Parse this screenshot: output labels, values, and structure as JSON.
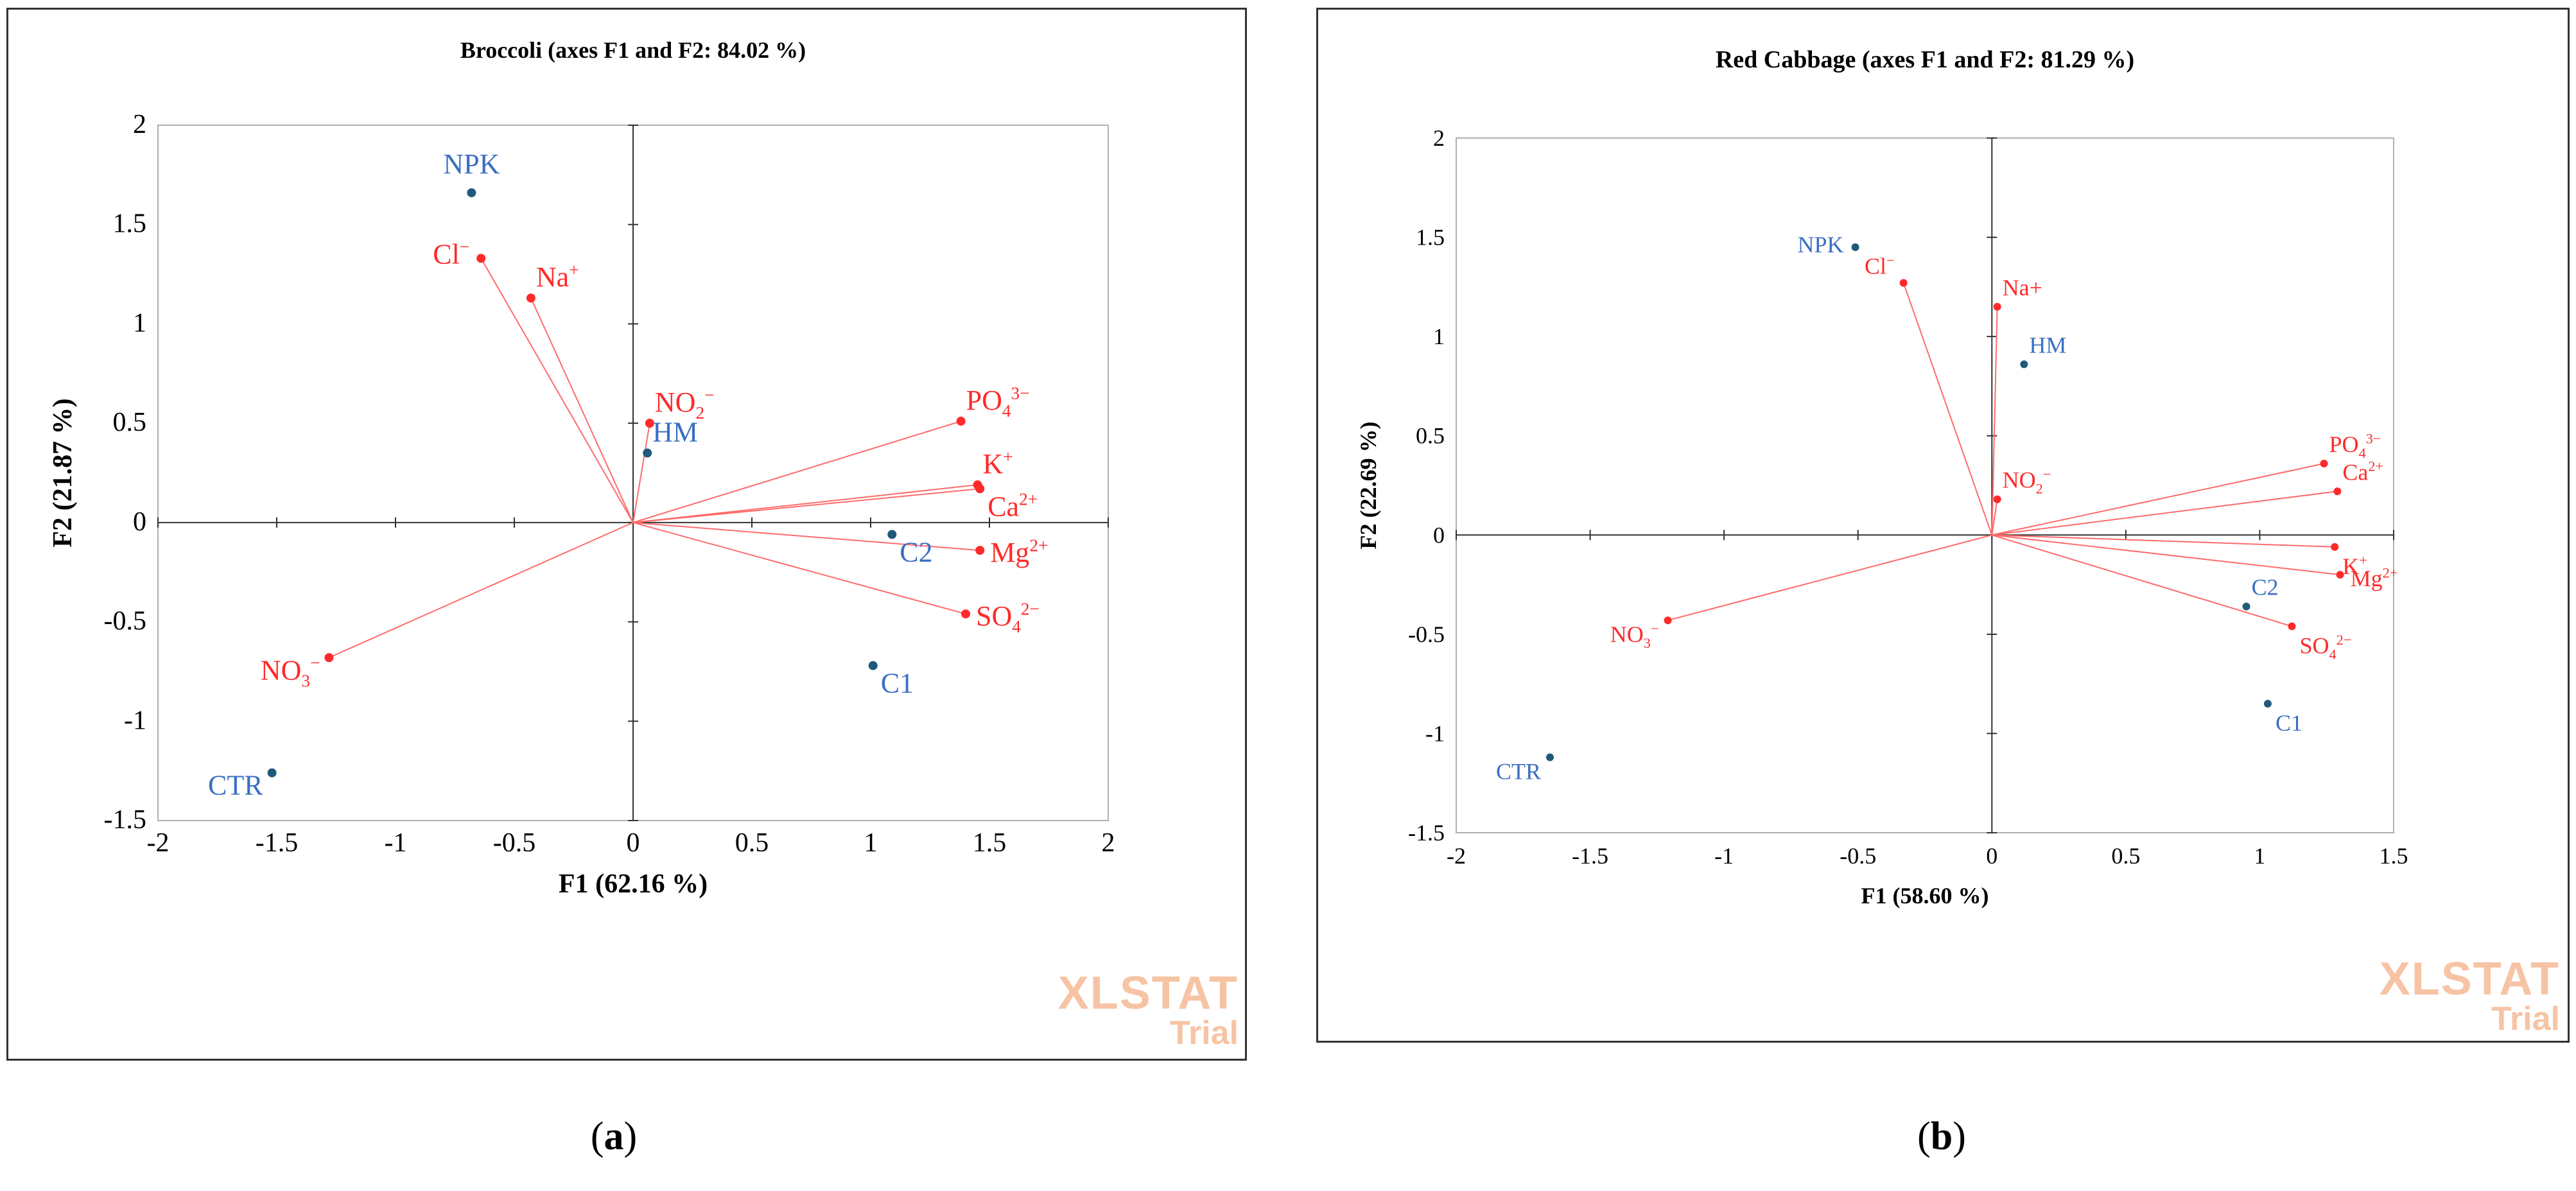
{
  "colors": {
    "variable": "#ff2a2a",
    "observation_label": "#3a6fc2",
    "observation_point": "#1f5a7a",
    "vector": "#ff6b6b",
    "axis": "#333333",
    "watermark": "#f6c4a4"
  },
  "watermark": {
    "brand": "XLSTAT",
    "trial": "Trial"
  },
  "captions": {
    "a": "a",
    "b": "b"
  },
  "chart_data": [
    {
      "type": "scatter",
      "subtype": "biplot",
      "title": "Broccoli (axes F1 and F2: 84.02 %)",
      "xlabel": "F1 (62.16 %)",
      "ylabel": "F2 (21.87 %)",
      "xlim": [
        -2,
        2
      ],
      "ylim": [
        -1.5,
        2
      ],
      "xticks": [
        -2,
        -1.5,
        -1,
        -0.5,
        0,
        0.5,
        1,
        1.5,
        2
      ],
      "yticks": [
        -1.5,
        -1,
        -0.5,
        0,
        0.5,
        1,
        1.5,
        2
      ],
      "xtick_labels": [
        "-2",
        "-1.5",
        "-1",
        "-0.5",
        "0",
        "0.5",
        "1",
        "1.5",
        "2"
      ],
      "ytick_labels": [
        "-1.5",
        "-1",
        "-0.5",
        "0",
        "0.5",
        "1",
        "1.5",
        "2"
      ],
      "variables": [
        {
          "base": "Cl",
          "sup": "−",
          "sub": "",
          "x": -0.64,
          "y": 1.33,
          "label_anchor": "left"
        },
        {
          "base": "Na",
          "sup": "+",
          "sub": "",
          "x": -0.43,
          "y": 1.13,
          "label_anchor": "right-above"
        },
        {
          "base": "NO",
          "sup": "−",
          "sub": "2",
          "x": 0.07,
          "y": 0.5,
          "label_anchor": "right-above"
        },
        {
          "base": "PO",
          "sup": "3−",
          "sub": "4",
          "x": 1.38,
          "y": 0.51,
          "label_anchor": "right-above"
        },
        {
          "base": "K",
          "sup": "+",
          "sub": "",
          "x": 1.45,
          "y": 0.19,
          "label_anchor": "right-above"
        },
        {
          "base": "Ca",
          "sup": "2+",
          "sub": "",
          "x": 1.46,
          "y": 0.17,
          "label_anchor": "right-below"
        },
        {
          "base": "Mg",
          "sup": "2+",
          "sub": "",
          "x": 1.46,
          "y": -0.14,
          "label_anchor": "right"
        },
        {
          "base": "SO",
          "sup": "2−",
          "sub": "4",
          "x": 1.4,
          "y": -0.46,
          "label_anchor": "right"
        },
        {
          "base": "NO",
          "sup": "−",
          "sub": "3",
          "x": -1.28,
          "y": -0.68,
          "label_anchor": "left-below"
        }
      ],
      "observations": [
        {
          "label": "NPK",
          "x": -0.68,
          "y": 1.66,
          "label_anchor": "above"
        },
        {
          "label": "HM",
          "x": 0.06,
          "y": 0.35,
          "label_anchor": "right-above"
        },
        {
          "label": "C2",
          "x": 1.09,
          "y": -0.06,
          "label_anchor": "right-below"
        },
        {
          "label": "C1",
          "x": 1.01,
          "y": -0.72,
          "label_anchor": "right-below"
        },
        {
          "label": "CTR",
          "x": -1.52,
          "y": -1.26,
          "label_anchor": "left-below"
        }
      ]
    },
    {
      "type": "scatter",
      "subtype": "biplot",
      "title": "Red Cabbage (axes F1 and F2: 81.29 %)",
      "xlabel": "F1 (58.60 %)",
      "ylabel": "F2 (22.69 %)",
      "xlim": [
        -2,
        1.5
      ],
      "ylim": [
        -1.5,
        2
      ],
      "xticks": [
        -2,
        -1.5,
        -1,
        -0.5,
        0,
        0.5,
        1,
        1.5
      ],
      "yticks": [
        -1.5,
        -1,
        -0.5,
        0,
        0.5,
        1,
        1.5,
        2
      ],
      "xtick_labels": [
        "-2",
        "-1.5",
        "-1",
        "-0.5",
        "0",
        "0.5",
        "1",
        "1.5"
      ],
      "ytick_labels": [
        "-1.5",
        "-1",
        "-0.5",
        "0",
        "0.5",
        "1",
        "1.5",
        "2"
      ],
      "variables": [
        {
          "base": "Cl",
          "sup": "−",
          "sub": "",
          "x": -0.33,
          "y": 1.27,
          "label_anchor": "left-above"
        },
        {
          "base": "Na+",
          "sup": "",
          "sub": "",
          "x": 0.02,
          "y": 1.15,
          "label_anchor": "right-above"
        },
        {
          "base": "NO",
          "sup": "−",
          "sub": "2",
          "x": 0.02,
          "y": 0.18,
          "label_anchor": "right-above"
        },
        {
          "base": "PO",
          "sup": "3−",
          "sub": "4",
          "x": 1.24,
          "y": 0.36,
          "label_anchor": "right-above"
        },
        {
          "base": "Ca",
          "sup": "2+",
          "sub": "",
          "x": 1.29,
          "y": 0.22,
          "label_anchor": "right-above"
        },
        {
          "base": "K",
          "sup": "+",
          "sub": "",
          "x": 1.28,
          "y": -0.06,
          "label_anchor": "right-below"
        },
        {
          "base": "Mg",
          "sup": "2+",
          "sub": "",
          "x": 1.3,
          "y": -0.2,
          "label_anchor": "right"
        },
        {
          "base": "SO",
          "sup": "2−",
          "sub": "4",
          "x": 1.12,
          "y": -0.46,
          "label_anchor": "right-below"
        },
        {
          "base": "NO",
          "sup": "−",
          "sub": "3",
          "x": -1.21,
          "y": -0.43,
          "label_anchor": "left-below"
        }
      ],
      "observations": [
        {
          "label": "NPK",
          "x": -0.51,
          "y": 1.45,
          "label_anchor": "left"
        },
        {
          "label": "HM",
          "x": 0.12,
          "y": 0.86,
          "label_anchor": "right-above"
        },
        {
          "label": "C2",
          "x": 0.95,
          "y": -0.36,
          "label_anchor": "right-above"
        },
        {
          "label": "C1",
          "x": 1.03,
          "y": -0.85,
          "label_anchor": "right-below"
        },
        {
          "label": "CTR",
          "x": -1.65,
          "y": -1.12,
          "label_anchor": "left-below"
        }
      ]
    }
  ]
}
